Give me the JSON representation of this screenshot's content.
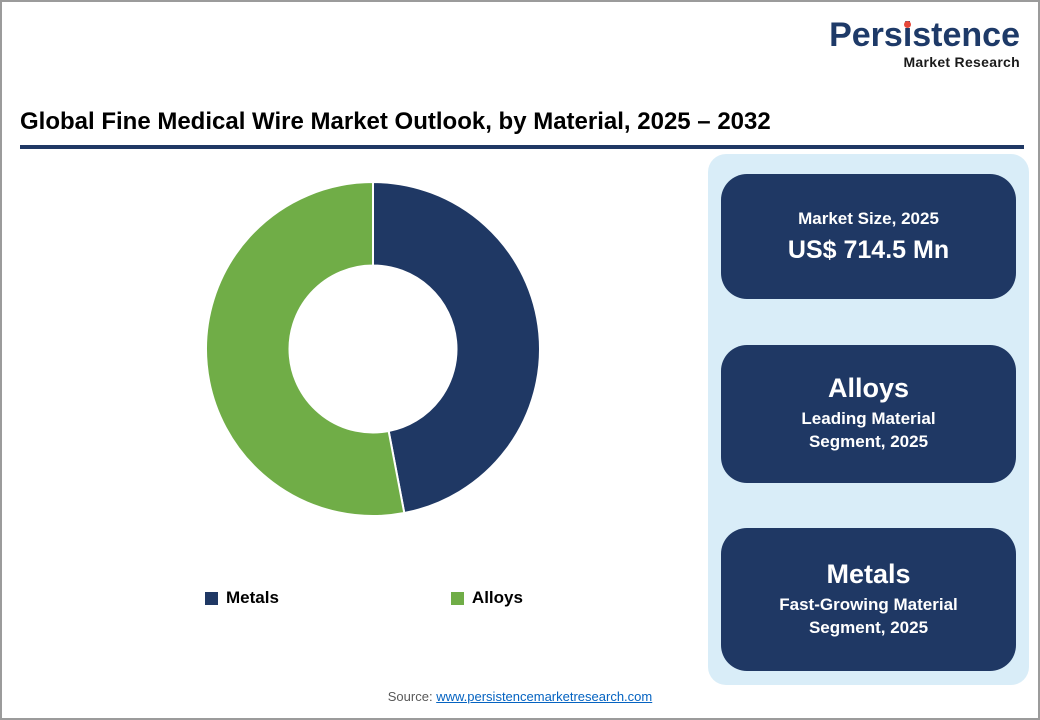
{
  "logo": {
    "brand": "Persistence",
    "subtitle": "Market Research",
    "accent_color": "#E8483A"
  },
  "header": {
    "title": "Global Fine Medical Wire Market Outlook, by Material, 2025 – 2032"
  },
  "chart_data": {
    "type": "pie",
    "subtype": "donut",
    "title": "Global Fine Medical Wire Market Outlook, by Material, 2025 – 2032",
    "categories": [
      "Metals",
      "Alloys"
    ],
    "values": [
      47,
      53
    ],
    "unit": "percent-share (estimated from arc angles, no data labels shown)",
    "colors": [
      "#1F3864",
      "#70AD47"
    ],
    "hole_ratio": 0.5,
    "start_angle_deg": 0,
    "legend_position": "bottom"
  },
  "sidebar": {
    "background": "#D9EDF8",
    "cards": [
      {
        "title": "Market Size, 2025",
        "value": "US$ 714.5 Mn"
      },
      {
        "title": "Alloys",
        "subtitle": "Leading Material Segment, 2025"
      },
      {
        "title": "Metals",
        "subtitle": "Fast-Growing Material Segment, 2025"
      }
    ]
  },
  "footer": {
    "source_label": "Source:",
    "source_link": "www.persistencemarketresearch.com"
  },
  "colors": {
    "navy": "#1F3864",
    "green": "#70AD47",
    "sidebar_blue": "#D9EDF8",
    "link_blue": "#0563C1",
    "accent_red": "#E8483A"
  }
}
